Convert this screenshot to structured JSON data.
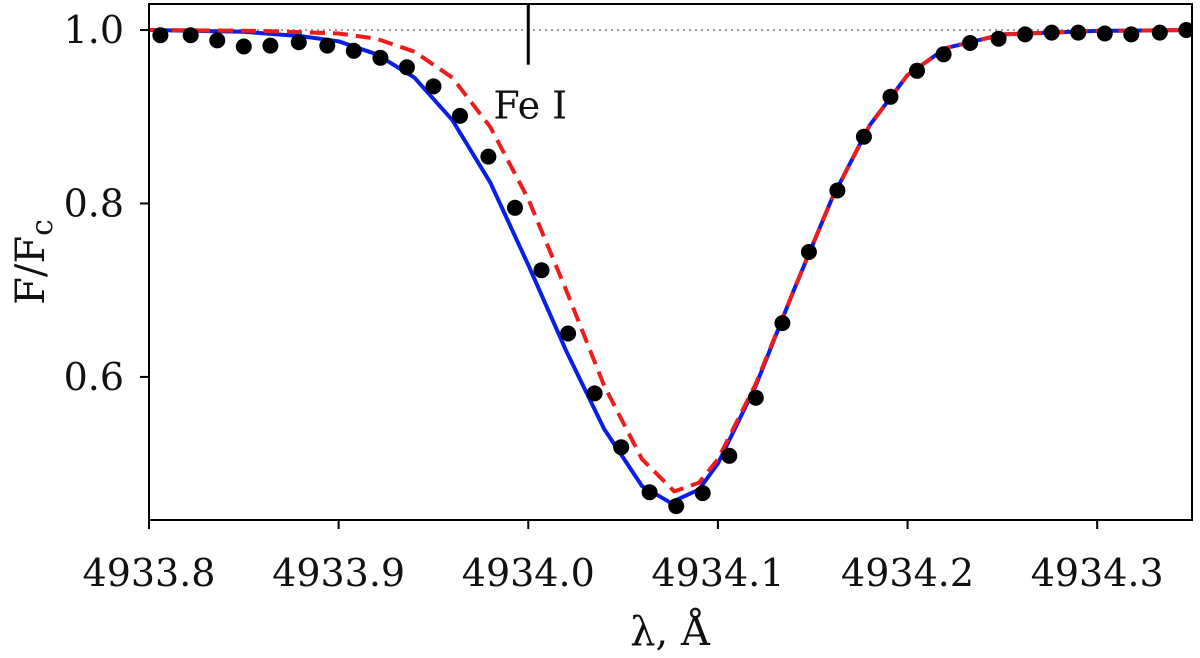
{
  "chart_data": {
    "type": "line",
    "title": "",
    "xlabel": "λ, Å",
    "ylabel": "F/F",
    "ylabel_sub": "c",
    "xlim": [
      4933.8,
      4934.35
    ],
    "ylim": [
      0.435,
      1.03
    ],
    "xticks": [
      4933.8,
      4933.9,
      4934.0,
      4934.1,
      4934.2,
      4934.3
    ],
    "xtick_labels": [
      "4933.8",
      "4933.9",
      "4934.0",
      "4934.1",
      "4934.2",
      "4934.3"
    ],
    "yticks": [
      0.6,
      0.8,
      1.0
    ],
    "ytick_labels": [
      "0.6",
      "0.8",
      "1.0"
    ],
    "grid": false,
    "reference_line": {
      "y": 1.0,
      "style": "dotted",
      "color": "#999999"
    },
    "annotation": {
      "text": "Fe I",
      "x": 4934.0,
      "y_top": 1.03,
      "y_bottom": 0.96
    },
    "series": [
      {
        "kind": "scatter",
        "color": "#000000",
        "x": [
          4933.806,
          4933.822,
          4933.836,
          4933.85,
          4933.864,
          4933.879,
          4933.894,
          4933.908,
          4933.922,
          4933.936,
          4933.95,
          4933.964,
          4933.979,
          4933.993,
          4934.007,
          4934.021,
          4934.035,
          4934.049,
          4934.064,
          4934.078,
          4934.092,
          4934.106,
          4934.12,
          4934.134,
          4934.148,
          4934.163,
          4934.177,
          4934.191,
          4934.205,
          4934.219,
          4934.233,
          4934.248,
          4934.262,
          4934.276,
          4934.29,
          4934.304,
          4934.318,
          4934.333,
          4934.347
        ],
        "y": [
          0.994,
          0.994,
          0.988,
          0.981,
          0.982,
          0.986,
          0.982,
          0.976,
          0.968,
          0.957,
          0.935,
          0.901,
          0.854,
          0.795,
          0.723,
          0.65,
          0.581,
          0.519,
          0.467,
          0.451,
          0.466,
          0.509,
          0.576,
          0.662,
          0.744,
          0.815,
          0.877,
          0.923,
          0.953,
          0.972,
          0.985,
          0.99,
          0.995,
          0.997,
          0.997,
          0.996,
          0.995,
          0.997,
          1.0
        ]
      },
      {
        "kind": "line",
        "style": "solid",
        "color": "#0b1ee6",
        "x": [
          4933.8,
          4933.85,
          4933.88,
          4933.9,
          4933.92,
          4933.94,
          4933.96,
          4933.98,
          4934.0,
          4934.02,
          4934.04,
          4934.06,
          4934.075,
          4934.09,
          4934.1,
          4934.12,
          4934.14,
          4934.16,
          4934.18,
          4934.2,
          4934.22,
          4934.25,
          4934.3,
          4934.35
        ],
        "y": [
          1.0,
          0.998,
          0.993,
          0.987,
          0.972,
          0.945,
          0.896,
          0.824,
          0.729,
          0.63,
          0.54,
          0.474,
          0.455,
          0.47,
          0.5,
          0.59,
          0.7,
          0.805,
          0.89,
          0.948,
          0.979,
          0.995,
          0.999,
          1.0
        ]
      },
      {
        "kind": "line",
        "style": "dashed",
        "color": "#ee1c1c",
        "x": [
          4933.8,
          4933.86,
          4933.9,
          4933.92,
          4933.94,
          4933.96,
          4933.98,
          4934.0,
          4934.02,
          4934.04,
          4934.06,
          4934.077,
          4934.09,
          4934.1,
          4934.12,
          4934.14,
          4934.16,
          4934.18,
          4934.2,
          4934.22,
          4934.25,
          4934.3,
          4934.35
        ],
        "y": [
          1.0,
          0.999,
          0.996,
          0.99,
          0.975,
          0.945,
          0.888,
          0.805,
          0.7,
          0.59,
          0.505,
          0.468,
          0.478,
          0.505,
          0.592,
          0.7,
          0.805,
          0.89,
          0.948,
          0.979,
          0.995,
          0.999,
          1.0
        ]
      }
    ]
  }
}
